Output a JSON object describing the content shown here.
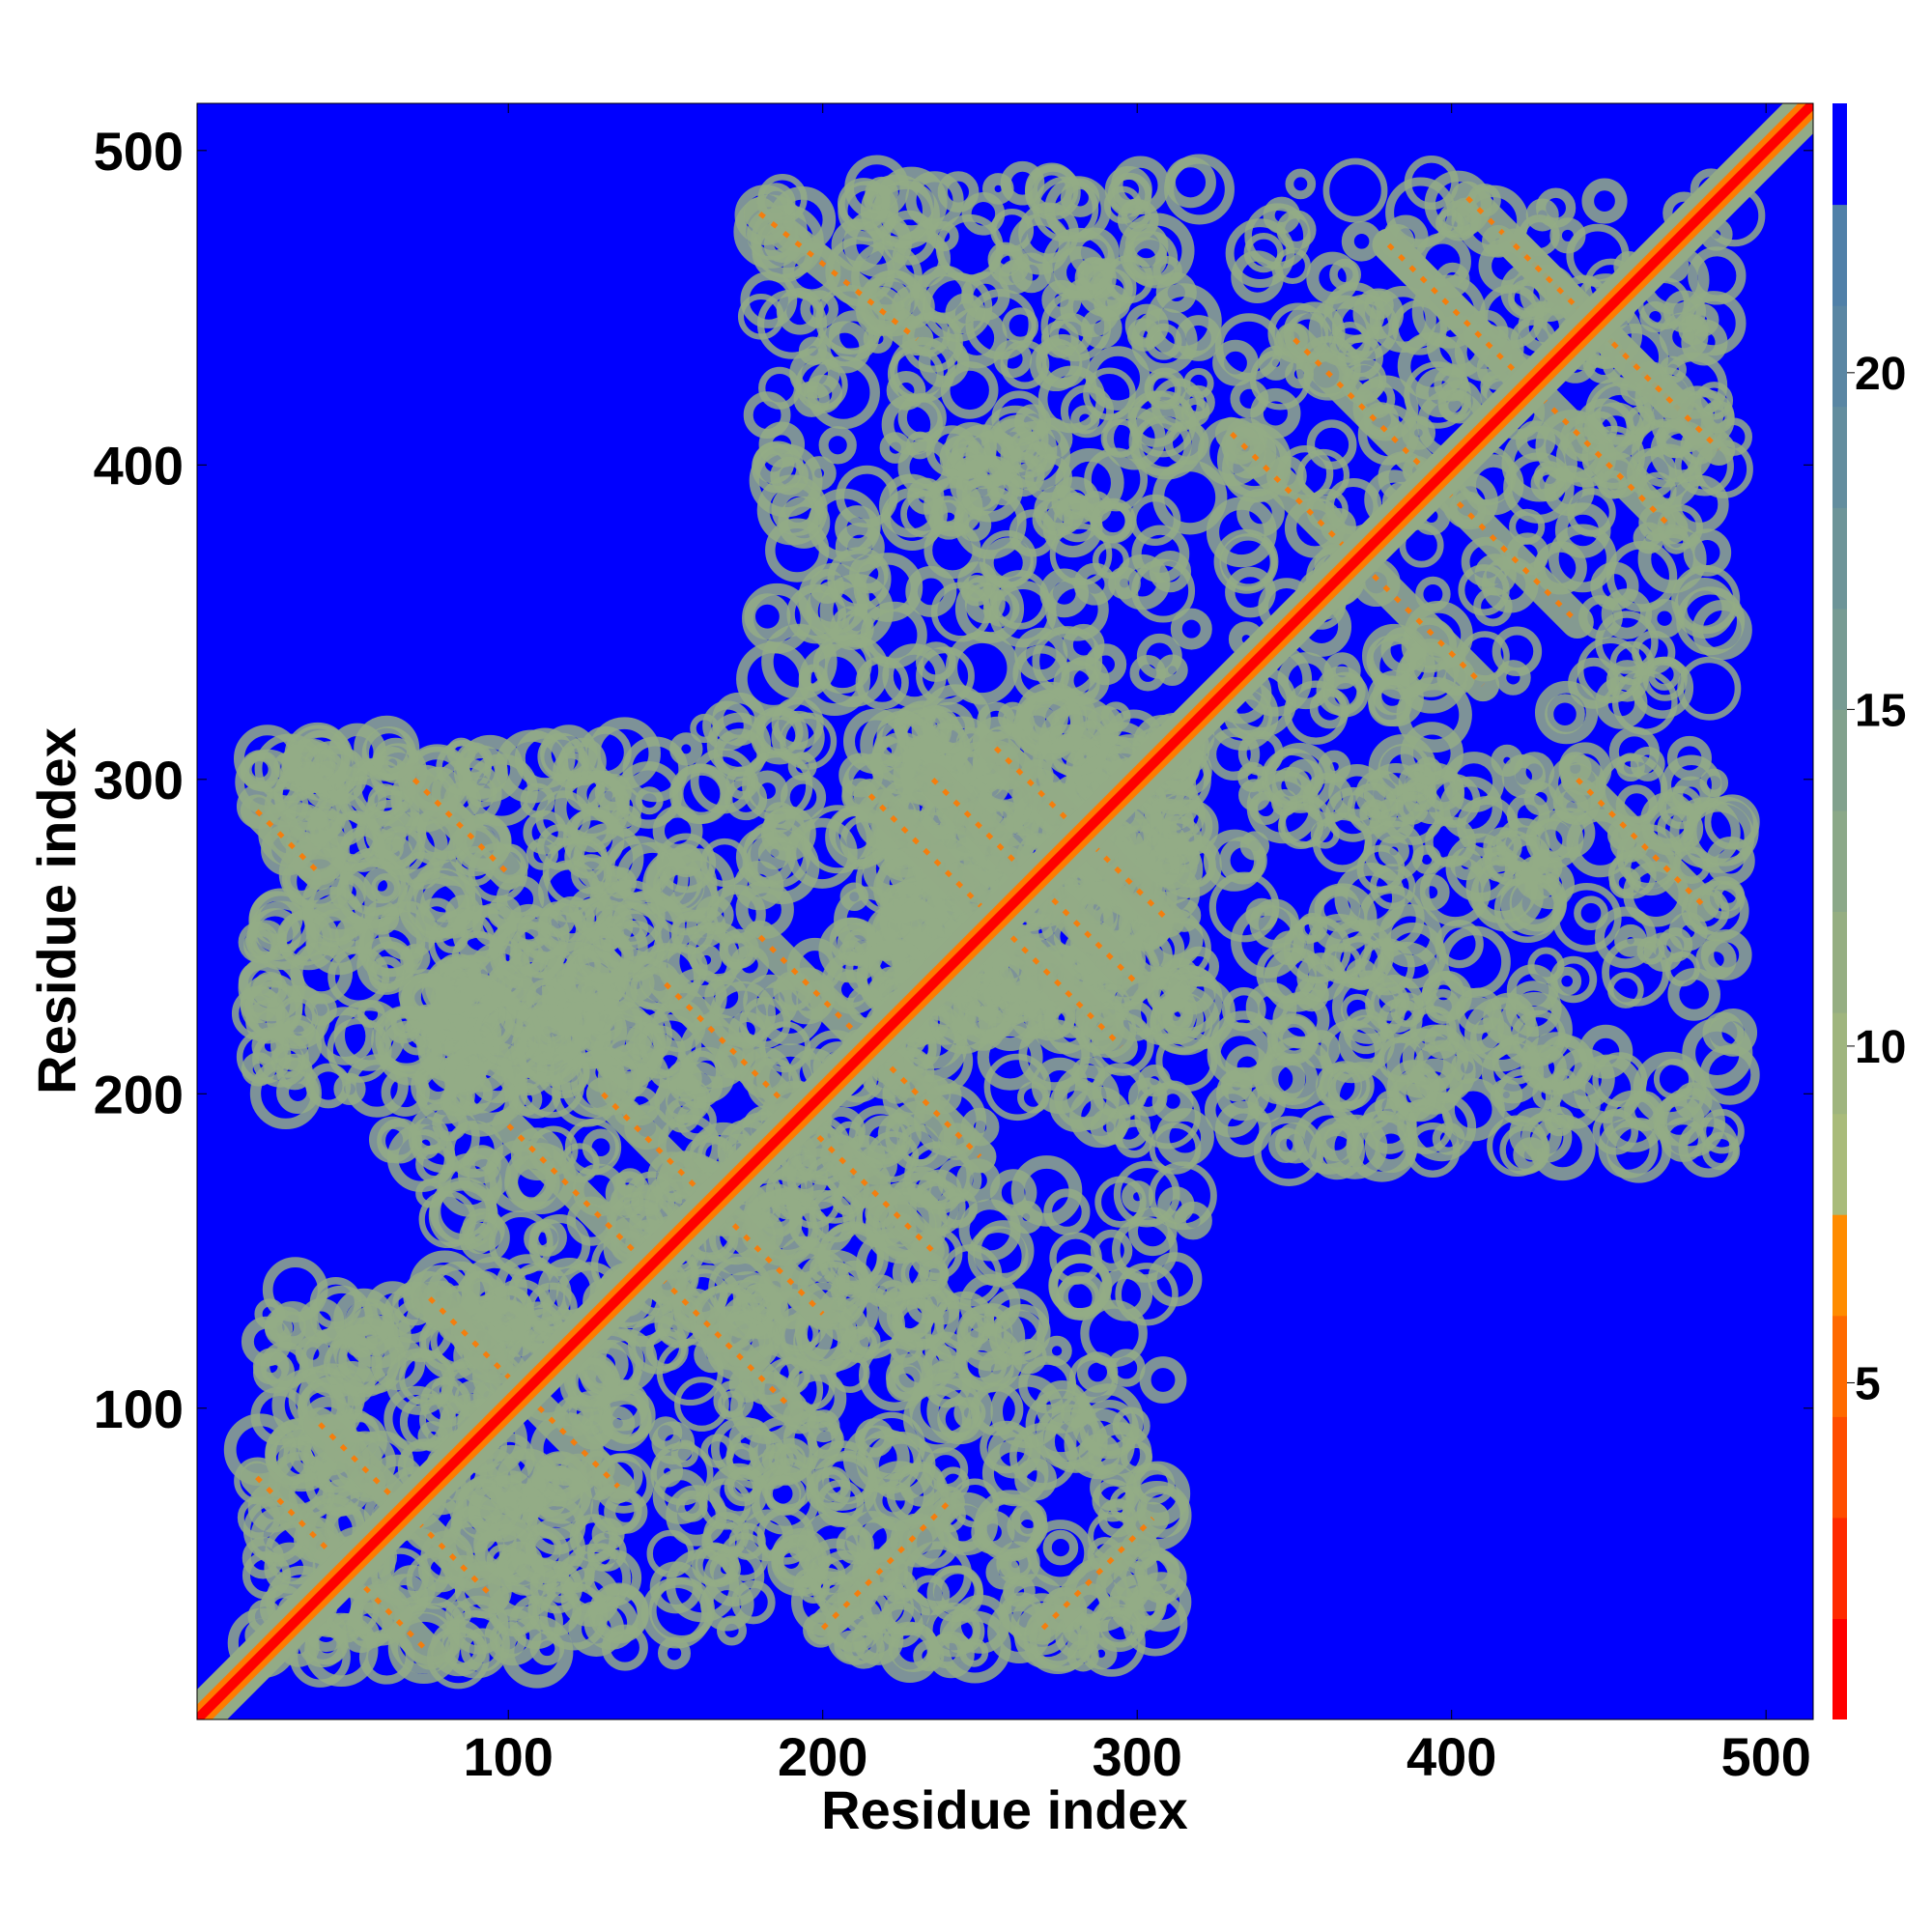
{
  "chart_data": {
    "type": "heatmap",
    "title": "",
    "xlabel": "Residue index",
    "ylabel": "Residue index",
    "xlim": [
      1,
      515
    ],
    "ylim": [
      1,
      515
    ],
    "x_ticks": [
      100,
      200,
      300,
      400,
      500
    ],
    "y_ticks": [
      100,
      200,
      300,
      400,
      500
    ],
    "colorbar": {
      "range": [
        0,
        24
      ],
      "ticks": [
        5,
        10,
        15,
        20
      ],
      "levels": [
        {
          "from": 0,
          "to": 1.5,
          "color": "#ff0000"
        },
        {
          "from": 1.5,
          "to": 3,
          "color": "#ff2a00"
        },
        {
          "from": 3,
          "to": 4.5,
          "color": "#ff4d00"
        },
        {
          "from": 4.5,
          "to": 6,
          "color": "#ff6a00"
        },
        {
          "from": 6,
          "to": 7.5,
          "color": "#ff8c00"
        },
        {
          "from": 7.5,
          "to": 9,
          "color": "#a9bb7a"
        },
        {
          "from": 9,
          "to": 10.5,
          "color": "#9fb57e"
        },
        {
          "from": 10.5,
          "to": 12,
          "color": "#95ae82"
        },
        {
          "from": 12,
          "to": 13.5,
          "color": "#8ba888"
        },
        {
          "from": 13.5,
          "to": 15,
          "color": "#81a18d"
        },
        {
          "from": 15,
          "to": 16.5,
          "color": "#779b93"
        },
        {
          "from": 16.5,
          "to": 18,
          "color": "#6d9498"
        },
        {
          "from": 18,
          "to": 19.5,
          "color": "#638d9e"
        },
        {
          "from": 19.5,
          "to": 21,
          "color": "#5a86a3"
        },
        {
          "from": 21,
          "to": 22.5,
          "color": "#5080a8"
        },
        {
          "from": 22.5,
          "to": 24,
          "color": "#0000ff"
        }
      ]
    },
    "colors": {
      "background": "#0000ff",
      "diagonal": "#ff0000",
      "contact_band": "#93ab86",
      "contact_core": "#ff7a00"
    },
    "domains": [
      {
        "name": "",
        "start": 1,
        "end": 320
      },
      {
        "name": "",
        "start": 320,
        "end": 515
      }
    ],
    "contact_blocks": [
      {
        "x": [
          20,
          140
        ],
        "y": [
          20,
          140
        ]
      },
      {
        "x": [
          60,
          240
        ],
        "y": [
          120,
          250
        ]
      },
      {
        "x": [
          140,
          320
        ],
        "y": [
          140,
          320
        ]
      },
      {
        "x": [
          220,
          320
        ],
        "y": [
          220,
          320
        ]
      },
      {
        "x": [
          330,
          490
        ],
        "y": [
          320,
          490
        ]
      },
      {
        "x": [
          20,
          140
        ],
        "y": [
          200,
          310
        ]
      },
      {
        "x": [
          150,
          310
        ],
        "y": [
          20,
          140
        ]
      },
      {
        "x": [
          180,
          320
        ],
        "y": [
          330,
          490
        ]
      },
      {
        "x": [
          330,
          490
        ],
        "y": [
          180,
          310
        ]
      }
    ],
    "contact_lines": [
      {
        "start": [
          20,
          78
        ],
        "end": [
          75,
          22
        ]
      },
      {
        "start": [
          40,
          95
        ],
        "end": [
          95,
          40
        ]
      },
      {
        "start": [
          75,
          135
        ],
        "end": [
          135,
          75
        ]
      },
      {
        "start": [
          100,
          190
        ],
        "end": [
          190,
          100
        ]
      },
      {
        "start": [
          130,
          200
        ],
        "end": [
          200,
          130
        ]
      },
      {
        "start": [
          150,
          235
        ],
        "end": [
          235,
          150
        ]
      },
      {
        "start": [
          180,
          250
        ],
        "end": [
          250,
          180
        ]
      },
      {
        "start": [
          215,
          295
        ],
        "end": [
          295,
          215
        ]
      },
      {
        "start": [
          235,
          300
        ],
        "end": [
          300,
          235
        ]
      },
      {
        "start": [
          255,
          310
        ],
        "end": [
          310,
          255
        ]
      },
      {
        "start": [
          330,
          410
        ],
        "end": [
          410,
          330
        ]
      },
      {
        "start": [
          350,
          440
        ],
        "end": [
          440,
          350
        ]
      },
      {
        "start": [
          380,
          470
        ],
        "end": [
          470,
          380
        ]
      },
      {
        "start": [
          405,
          485
        ],
        "end": [
          485,
          405
        ]
      },
      {
        "start": [
          20,
          290
        ],
        "end": [
          40,
          270
        ]
      },
      {
        "start": [
          70,
          300
        ],
        "end": [
          100,
          270
        ]
      },
      {
        "start": [
          200,
          30
        ],
        "end": [
          240,
          70
        ]
      },
      {
        "start": [
          270,
          30
        ],
        "end": [
          305,
          65
        ]
      },
      {
        "start": [
          380,
          470
        ],
        "end": [
          420,
          430
        ]
      },
      {
        "start": [
          420,
          470
        ],
        "end": [
          470,
          420
        ]
      },
      {
        "start": [
          440,
          300
        ],
        "end": [
          480,
          260
        ]
      },
      {
        "start": [
          180,
          480
        ],
        "end": [
          230,
          440
        ]
      }
    ]
  }
}
